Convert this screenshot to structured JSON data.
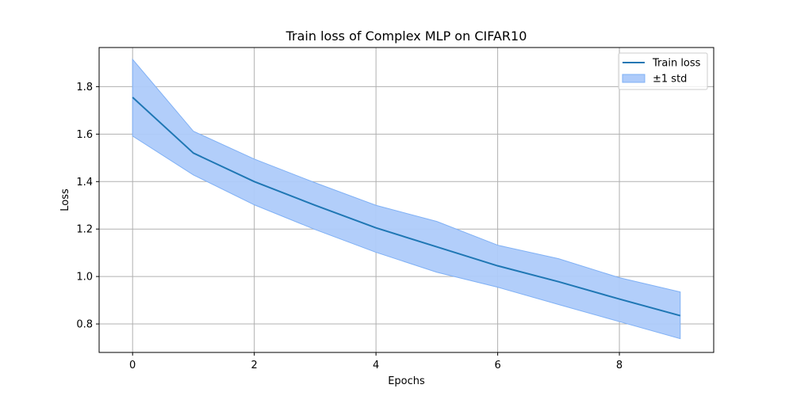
{
  "chart_data": {
    "type": "line",
    "title": "Train loss of Complex MLP on CIFAR10",
    "xlabel": "Epochs",
    "ylabel": "Loss",
    "x": [
      0,
      1,
      2,
      3,
      4,
      5,
      6,
      7,
      8,
      9
    ],
    "series": [
      {
        "name": "Train loss",
        "color": "#1f77b4",
        "values": [
          1.755,
          1.52,
          1.4,
          1.3,
          1.205,
          1.125,
          1.045,
          0.978,
          0.905,
          0.835
        ]
      }
    ],
    "band": {
      "name": "±1 std",
      "color": "#aecbfa",
      "edge_color": "#7fb0f5",
      "upper": [
        1.915,
        1.612,
        1.495,
        1.395,
        1.3,
        1.232,
        1.132,
        1.075,
        0.995,
        0.935
      ],
      "lower": [
        1.592,
        1.428,
        1.302,
        1.198,
        1.102,
        1.018,
        0.955,
        0.882,
        0.81,
        0.738
      ]
    },
    "xlim": [
      -0.55,
      9.55
    ],
    "ylim": [
      0.68,
      1.965
    ],
    "xticks": [
      0,
      2,
      4,
      6,
      8
    ],
    "yticks": [
      0.8,
      1.0,
      1.2,
      1.4,
      1.6,
      1.8
    ],
    "xtick_labels": [
      "0",
      "2",
      "4",
      "6",
      "8"
    ],
    "ytick_labels": [
      "0.8",
      "1.0",
      "1.2",
      "1.4",
      "1.6",
      "1.8"
    ],
    "grid": true,
    "legend_position": "top-right"
  }
}
